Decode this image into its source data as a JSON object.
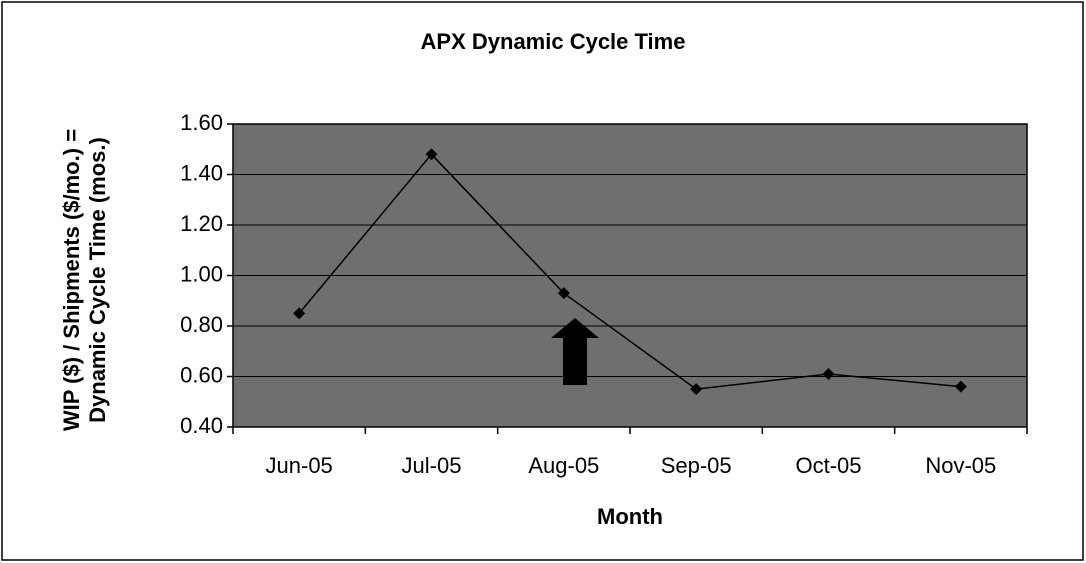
{
  "chart_data": {
    "type": "line",
    "title": "APX Dynamic Cycle Time",
    "x_label": "Month",
    "y_label": "WIP ($) / Shipments ($/mo.) = Dynamic Cycle Time (mos.)",
    "categories": [
      "Jun-05",
      "Jul-05",
      "Aug-05",
      "Sep-05",
      "Oct-05",
      "Nov-05"
    ],
    "series": [
      {
        "name": "Dynamic Cycle Time",
        "color": "#000000",
        "values": [
          0.85,
          1.48,
          0.93,
          0.55,
          0.61,
          0.56
        ]
      }
    ],
    "ylim": [
      0.4,
      1.6
    ],
    "yticks": [
      {
        "value": 0.4,
        "label": "0.40"
      },
      {
        "value": 0.6,
        "label": "0.60"
      },
      {
        "value": 0.8,
        "label": "0.80"
      },
      {
        "value": 1.0,
        "label": "1.00"
      },
      {
        "value": 1.2,
        "label": "1.20"
      },
      {
        "value": 1.4,
        "label": "1.40"
      },
      {
        "value": 1.6,
        "label": "1.60"
      }
    ],
    "grid": true,
    "plot_background": "#6f6f6f"
  }
}
